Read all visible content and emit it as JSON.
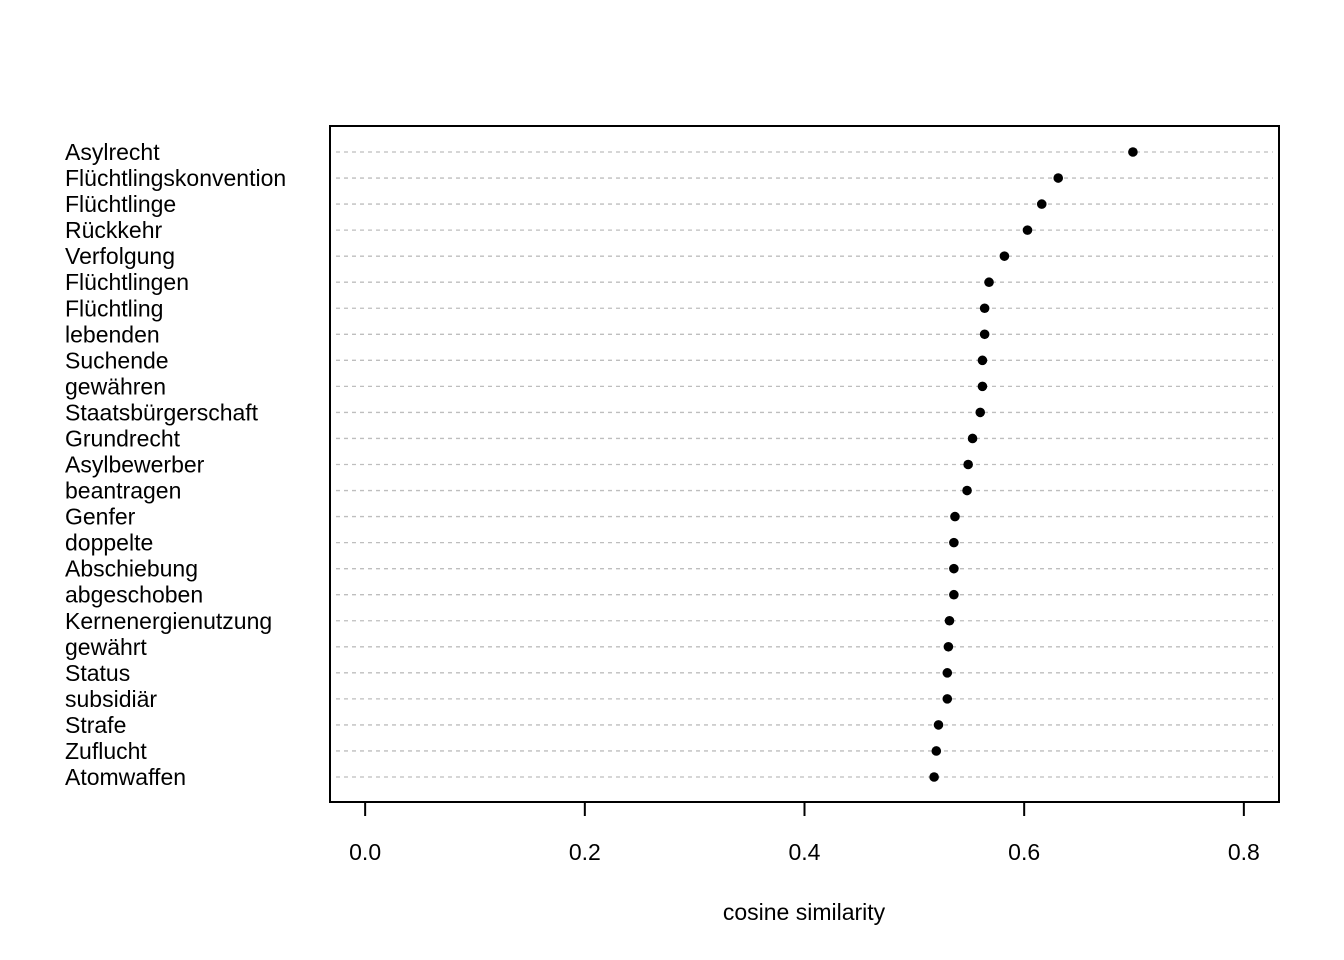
{
  "chart_data": {
    "type": "scatter",
    "subtype": "dotchart",
    "title": "",
    "xlabel": "cosine similarity",
    "ylabel": "",
    "xlim": [
      -0.032,
      0.832
    ],
    "xticks": [
      0.0,
      0.2,
      0.4,
      0.6,
      0.8
    ],
    "xtick_labels": [
      "0.0",
      "0.2",
      "0.4",
      "0.6",
      "0.8"
    ],
    "grid": "horizontal dashed lines per category",
    "legend": "none",
    "point_color": "#000000",
    "grid_color": "#bebebe",
    "categories": [
      "Asylrecht",
      "Flüchtlingskonvention",
      "Flüchtlinge",
      "Rückkehr",
      "Verfolgung",
      "Flüchtlingen",
      "Flüchtling",
      "lebenden",
      "Suchende",
      "gewähren",
      "Staatsbürgerschaft",
      "Grundrecht",
      "Asylbewerber",
      "beantragen",
      "Genfer",
      "doppelte",
      "Abschiebung",
      "abgeschoben",
      "Kernenergienutzung",
      "gewährt",
      "Status",
      "subsidiär",
      "Strafe",
      "Zuflucht",
      "Atomwaffen"
    ],
    "values": [
      0.699,
      0.631,
      0.616,
      0.603,
      0.582,
      0.568,
      0.564,
      0.564,
      0.562,
      0.562,
      0.56,
      0.553,
      0.549,
      0.548,
      0.537,
      0.536,
      0.536,
      0.536,
      0.532,
      0.531,
      0.53,
      0.53,
      0.522,
      0.52,
      0.518
    ]
  }
}
